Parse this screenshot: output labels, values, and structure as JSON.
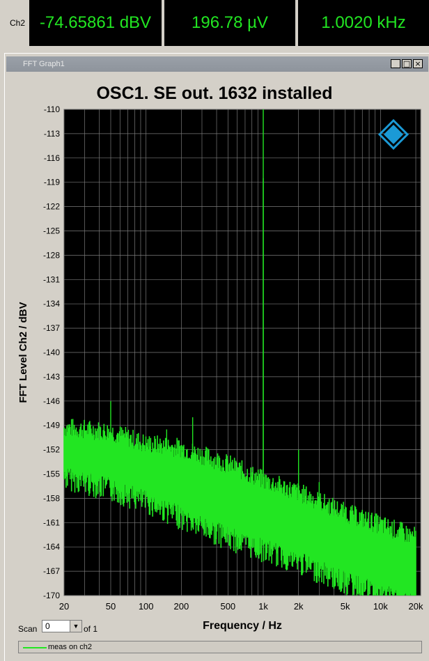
{
  "status_bar": {
    "channel_label": "Ch2",
    "level": "-74.65861 dBV",
    "voltage": "196.78 µV",
    "frequency": "1.0020 kHz"
  },
  "window": {
    "title": "FFT Graph1",
    "minimize": "_",
    "maximize": "□",
    "close": "×"
  },
  "scan": {
    "label": "Scan",
    "value": "0",
    "of_label": "of 1"
  },
  "legend": {
    "label": "meas on ch2"
  },
  "colors": {
    "trace": "#22e622",
    "plot_bg": "#000000",
    "grid": "#7a7a7a",
    "logo": "#1b9ad6"
  },
  "chart_data": {
    "type": "line",
    "title": "OSC1. SE out. 1632 installed",
    "xlabel": "Frequency / Hz",
    "ylabel": "FFT Level Ch2 / dBV",
    "x_scale": "log",
    "xlim": [
      20,
      22000
    ],
    "ylim": [
      -170,
      -110
    ],
    "x_ticks": [
      20,
      50,
      100,
      200,
      500,
      1000,
      2000,
      5000,
      10000,
      20000
    ],
    "x_tick_labels": [
      "20",
      "50",
      "100",
      "200",
      "500",
      "1k",
      "2k",
      "5k",
      "10k",
      "20k"
    ],
    "y_ticks": [
      -110,
      -113,
      -116,
      -119,
      -122,
      -125,
      -128,
      -131,
      -134,
      -137,
      -140,
      -143,
      -146,
      -149,
      -152,
      -155,
      -158,
      -161,
      -164,
      -167,
      -170
    ],
    "grid": true,
    "series": [
      {
        "name": "meas on ch2",
        "noise_floor_upper": [
          [
            20,
            -150.5
          ],
          [
            50,
            -151
          ],
          [
            100,
            -152.5
          ],
          [
            200,
            -153
          ],
          [
            500,
            -155
          ],
          [
            1000,
            -157
          ],
          [
            2000,
            -158.5
          ],
          [
            5000,
            -161
          ],
          [
            10000,
            -162.5
          ],
          [
            20000,
            -164
          ]
        ],
        "noise_floor_lower": [
          [
            20,
            -154
          ],
          [
            50,
            -155.5
          ],
          [
            100,
            -157
          ],
          [
            200,
            -159
          ],
          [
            500,
            -161.5
          ],
          [
            1000,
            -163
          ],
          [
            2000,
            -164.5
          ],
          [
            5000,
            -167
          ],
          [
            10000,
            -168.5
          ],
          [
            20000,
            -170
          ]
        ],
        "peaks": [
          {
            "x": 1000,
            "y": -110
          },
          {
            "x": 1000,
            "y": -118.5
          },
          {
            "x": 50,
            "y": -146
          },
          {
            "x": 150,
            "y": -149.5
          },
          {
            "x": 250,
            "y": -148
          },
          {
            "x": 2000,
            "y": -152
          },
          {
            "x": 3000,
            "y": -156
          },
          {
            "x": 5000,
            "y": -159
          }
        ]
      }
    ]
  }
}
